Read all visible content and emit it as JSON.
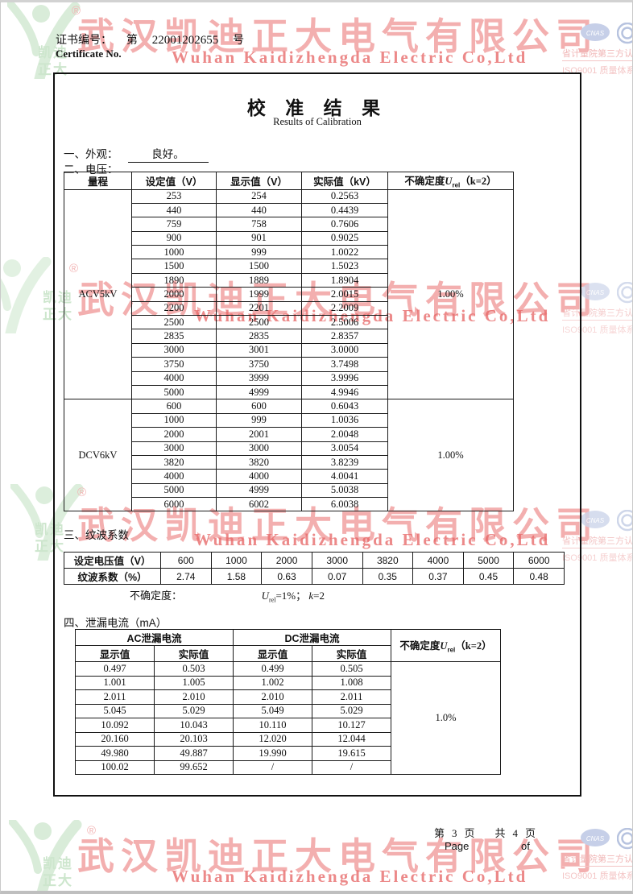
{
  "header": {
    "cert_label_cn": "证书编号：",
    "cert_prefix": "第",
    "cert_number": "22001202655",
    "cert_suffix": "号",
    "cert_label_en": "Certificate No."
  },
  "watermark": {
    "company_cn": "武汉凯迪正大电气有限公司",
    "company_en": "Wuhan Kaidizhengda Electric Co,Ltd",
    "cert_line1": "省计量院第三方认证产品",
    "cert_line2": "ISO9001 质量体系认证企业",
    "cnas_label": "CNAS",
    "logo_line1": "凯迪",
    "logo_line2": "正大",
    "registered_mark": "®",
    "colors": {
      "red": "#e76060",
      "light_red": "#f0b6b6",
      "green": "#d9ecd9",
      "blue": "#b7c3df"
    }
  },
  "title": {
    "cn": "校 准 结 果",
    "en": "Results of Calibration"
  },
  "sections": {
    "s1_label": "一、外观：",
    "s1_value": "良好。",
    "s2_label": "二、电压：",
    "s3_label": "三、纹波系数",
    "s4_label": "四、泄漏电流（mA）"
  },
  "voltage_table": {
    "headers": [
      "量程",
      "设定值（V）",
      "显示值（V）",
      "实际值（kV）"
    ],
    "unc_prefix": "不确定度",
    "unc_u": "U",
    "unc_sub": "rel",
    "unc_rest": "（k=2）",
    "acv": {
      "range": "ACV5kV",
      "uncertainty": "1.00%",
      "rows": [
        [
          "253",
          "254",
          "0.2563"
        ],
        [
          "440",
          "440",
          "0.4439"
        ],
        [
          "759",
          "758",
          "0.7606"
        ],
        [
          "900",
          "901",
          "0.9025"
        ],
        [
          "1000",
          "999",
          "1.0022"
        ],
        [
          "1500",
          "1500",
          "1.5023"
        ],
        [
          "1890",
          "1889",
          "1.8904"
        ],
        [
          "2000",
          "1999",
          "2.0015"
        ],
        [
          "2200",
          "2201",
          "2.2009"
        ],
        [
          "2500",
          "2500",
          "2.5006"
        ],
        [
          "2835",
          "2835",
          "2.8357"
        ],
        [
          "3000",
          "3001",
          "3.0000"
        ],
        [
          "3750",
          "3750",
          "3.7498"
        ],
        [
          "4000",
          "3999",
          "3.9996"
        ],
        [
          "5000",
          "4999",
          "4.9946"
        ]
      ]
    },
    "dcv": {
      "range": "DCV6kV",
      "uncertainty": "1.00%",
      "rows": [
        [
          "600",
          "600",
          "0.6043"
        ],
        [
          "1000",
          "999",
          "1.0036"
        ],
        [
          "2000",
          "2001",
          "2.0048"
        ],
        [
          "3000",
          "3000",
          "3.0054"
        ],
        [
          "3820",
          "3820",
          "3.8239"
        ],
        [
          "4000",
          "4000",
          "4.0041"
        ],
        [
          "5000",
          "4999",
          "5.0038"
        ],
        [
          "6000",
          "6002",
          "6.0038"
        ]
      ]
    }
  },
  "ripple_table": {
    "row1_label": "设定电压值（V）",
    "row2_label": "纹波系数（%）",
    "voltages": [
      "600",
      "1000",
      "2000",
      "3000",
      "3820",
      "4000",
      "5000",
      "6000"
    ],
    "coefficients": [
      "2.74",
      "1.58",
      "0.63",
      "0.07",
      "0.35",
      "0.37",
      "0.45",
      "0.48"
    ],
    "note_label": "不确定度：",
    "note_u": "U",
    "note_sub": "rel",
    "note_mid": "=1%；",
    "note_k": "k",
    "note_end": "=2"
  },
  "leakage_table": {
    "group_ac": "AC泄漏电流",
    "group_dc": "DC泄漏电流",
    "sub_headers": [
      "显示值",
      "实际值",
      "显示值",
      "实际值"
    ],
    "unc_prefix": "不确定度",
    "unc_u": "U",
    "unc_sub": "rel",
    "unc_rest": "（k=2）",
    "uncertainty": "1.0%",
    "rows": [
      [
        "0.497",
        "0.503",
        "0.499",
        "0.505"
      ],
      [
        "1.001",
        "1.005",
        "1.002",
        "1.008"
      ],
      [
        "2.011",
        "2.010",
        "2.010",
        "2.011"
      ],
      [
        "5.045",
        "5.029",
        "5.049",
        "5.029"
      ],
      [
        "10.092",
        "10.043",
        "10.110",
        "10.127"
      ],
      [
        "20.160",
        "20.103",
        "12.020",
        "12.044"
      ],
      [
        "49.980",
        "49.887",
        "19.990",
        "19.615"
      ],
      [
        "100.02",
        "99.652",
        "/",
        "/"
      ]
    ]
  },
  "footer": {
    "p1": "第",
    "p2": "3",
    "p3": "页",
    "p4": "共",
    "p5": "4",
    "p6": "页",
    "page_en": "Page",
    "of_en": "of"
  }
}
